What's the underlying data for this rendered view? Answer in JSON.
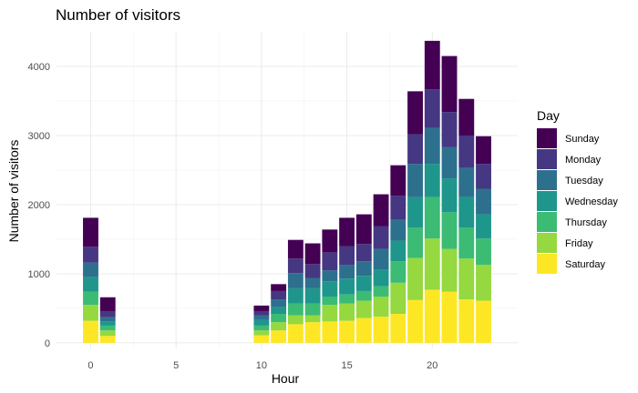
{
  "chart_data": {
    "type": "bar",
    "stacked": true,
    "title": "Number of visitors",
    "xlabel": "Hour",
    "ylabel": "Number of visitors",
    "xlim": [
      -2,
      25
    ],
    "ylim": [
      -80,
      4500
    ],
    "xticks": [
      0,
      5,
      10,
      15,
      20
    ],
    "yticks": [
      0,
      1000,
      2000,
      3000,
      4000
    ],
    "legend": {
      "title": "Day",
      "position": "right"
    },
    "hours": [
      0,
      1,
      10,
      11,
      12,
      13,
      14,
      15,
      16,
      17,
      18,
      19,
      20,
      21,
      22,
      23
    ],
    "series": [
      {
        "name": "Saturday",
        "color": "#FDE725",
        "values": [
          320,
          100,
          110,
          180,
          270,
          300,
          310,
          320,
          360,
          380,
          420,
          620,
          770,
          740,
          630,
          610
        ]
      },
      {
        "name": "Friday",
        "color": "#95D840",
        "values": [
          230,
          80,
          70,
          120,
          130,
          100,
          240,
          250,
          250,
          290,
          450,
          610,
          740,
          620,
          590,
          520
        ]
      },
      {
        "name": "Thursday",
        "color": "#3CBB75",
        "values": [
          190,
          70,
          70,
          120,
          170,
          170,
          120,
          130,
          140,
          150,
          310,
          440,
          600,
          530,
          450,
          380
        ]
      },
      {
        "name": "Wednesday",
        "color": "#1F968B",
        "values": [
          210,
          60,
          80,
          100,
          220,
          220,
          220,
          230,
          220,
          240,
          300,
          440,
          480,
          490,
          440,
          350
        ]
      },
      {
        "name": "Tuesday",
        "color": "#2D708E",
        "values": [
          210,
          60,
          70,
          110,
          220,
          150,
          160,
          200,
          210,
          300,
          300,
          480,
          520,
          450,
          420,
          370
        ]
      },
      {
        "name": "Monday",
        "color": "#453781",
        "values": [
          230,
          90,
          60,
          120,
          210,
          200,
          260,
          270,
          250,
          330,
          350,
          430,
          560,
          510,
          470,
          360
        ]
      },
      {
        "name": "Sunday",
        "color": "#440154",
        "values": [
          420,
          200,
          80,
          100,
          270,
          300,
          330,
          410,
          430,
          460,
          440,
          620,
          700,
          810,
          530,
          400
        ]
      }
    ]
  }
}
